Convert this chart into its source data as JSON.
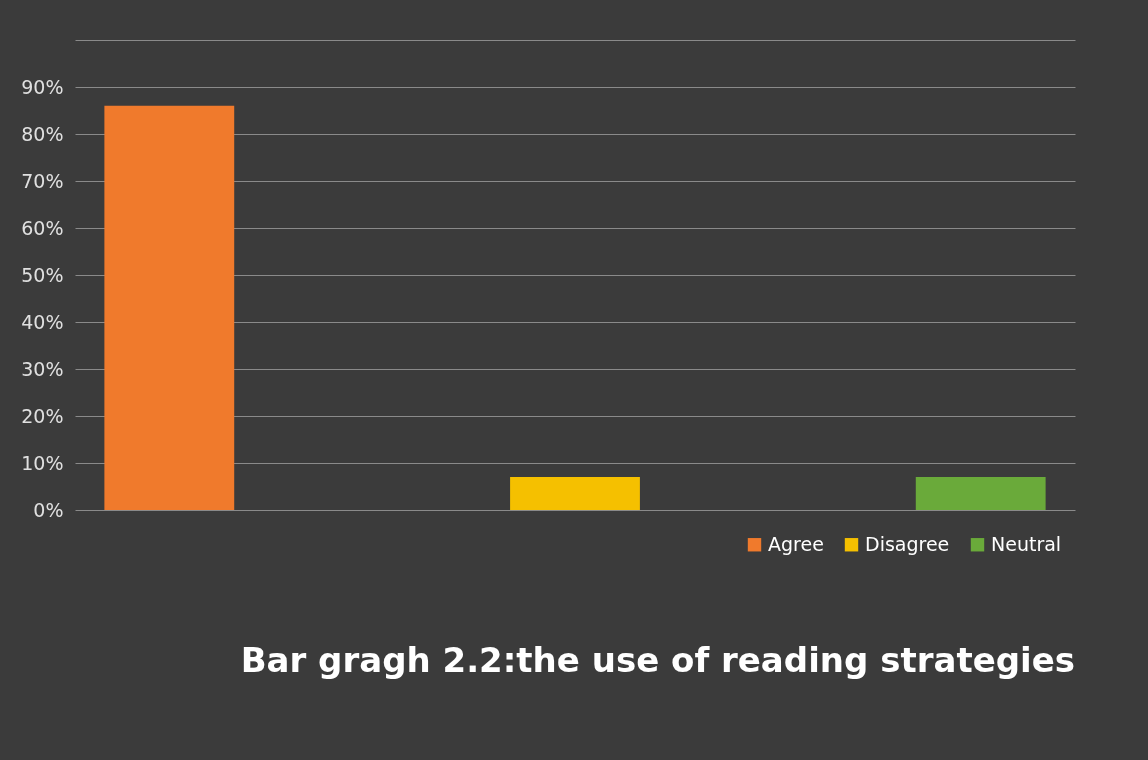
{
  "chart_data": {
    "type": "bar",
    "title": "Bar gragh 2.2:the use of reading strategies",
    "categories": [
      null
    ],
    "series": [
      {
        "name": "Agree",
        "color": "#f07a2c",
        "values": [
          86
        ]
      },
      {
        "name": "Disagree",
        "color": "#f5c000",
        "values": [
          7
        ]
      },
      {
        "name": "Neutral",
        "color": "#6aaa3a",
        "values": [
          7
        ]
      }
    ],
    "ylim": [
      0,
      100
    ],
    "yticks": [
      {
        "value": 0,
        "label": "0%"
      },
      {
        "value": 10,
        "label": "10%"
      },
      {
        "value": 20,
        "label": "20%"
      },
      {
        "value": 30,
        "label": "30%"
      },
      {
        "value": 40,
        "label": "40%"
      },
      {
        "value": 50,
        "label": "50%"
      },
      {
        "value": 60,
        "label": "60%"
      },
      {
        "value": 70,
        "label": "70%"
      },
      {
        "value": 80,
        "label": "80%"
      },
      {
        "value": 90,
        "label": "90%"
      },
      {
        "value": 100,
        "label": null
      }
    ],
    "grid": "y",
    "legend": "bottom right"
  }
}
